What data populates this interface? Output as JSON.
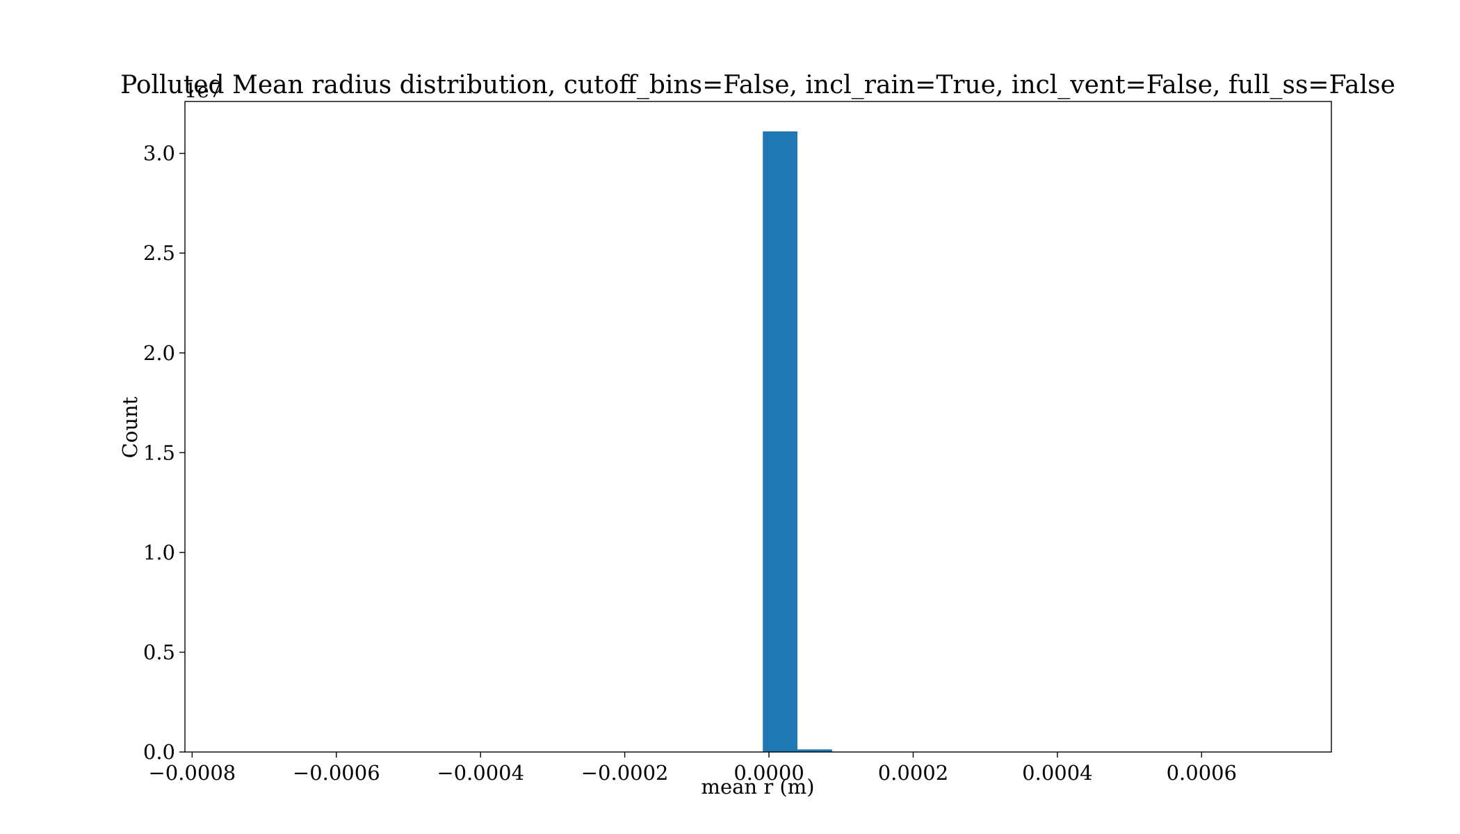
{
  "chart_data": {
    "type": "bar",
    "title": "Polluted Mean radius distribution, cutoff_bins=False, incl_rain=True, incl_vent=False, full_ss=False",
    "xlabel": "mean r (m)",
    "ylabel": "Count",
    "y_offset_label": "1e7",
    "y_scale": 10000000,
    "xlim": [
      -0.00081,
      0.00078
    ],
    "ylim": [
      0,
      32600000
    ],
    "x_ticks": [
      -0.0008,
      -0.0006,
      -0.0004,
      -0.0002,
      0.0,
      0.0002,
      0.0004,
      0.0006
    ],
    "x_tick_labels": [
      "−0.0008",
      "−0.0006",
      "−0.0004",
      "−0.0002",
      "0.0000",
      "0.0002",
      "0.0004",
      "0.0006"
    ],
    "y_ticks": [
      0,
      5000000,
      10000000,
      15000000,
      20000000,
      25000000,
      30000000
    ],
    "y_tick_labels": [
      "0.0",
      "0.5",
      "1.0",
      "1.5",
      "2.0",
      "2.5",
      "3.0"
    ],
    "bars": [
      {
        "x0": -8.5e-06,
        "x1": 3.95e-05,
        "value": 31100000
      },
      {
        "x0": 3.95e-05,
        "x1": 8.75e-05,
        "value": 130000
      }
    ],
    "bar_color": "#1f77b4",
    "grid": false,
    "legend": "none"
  }
}
